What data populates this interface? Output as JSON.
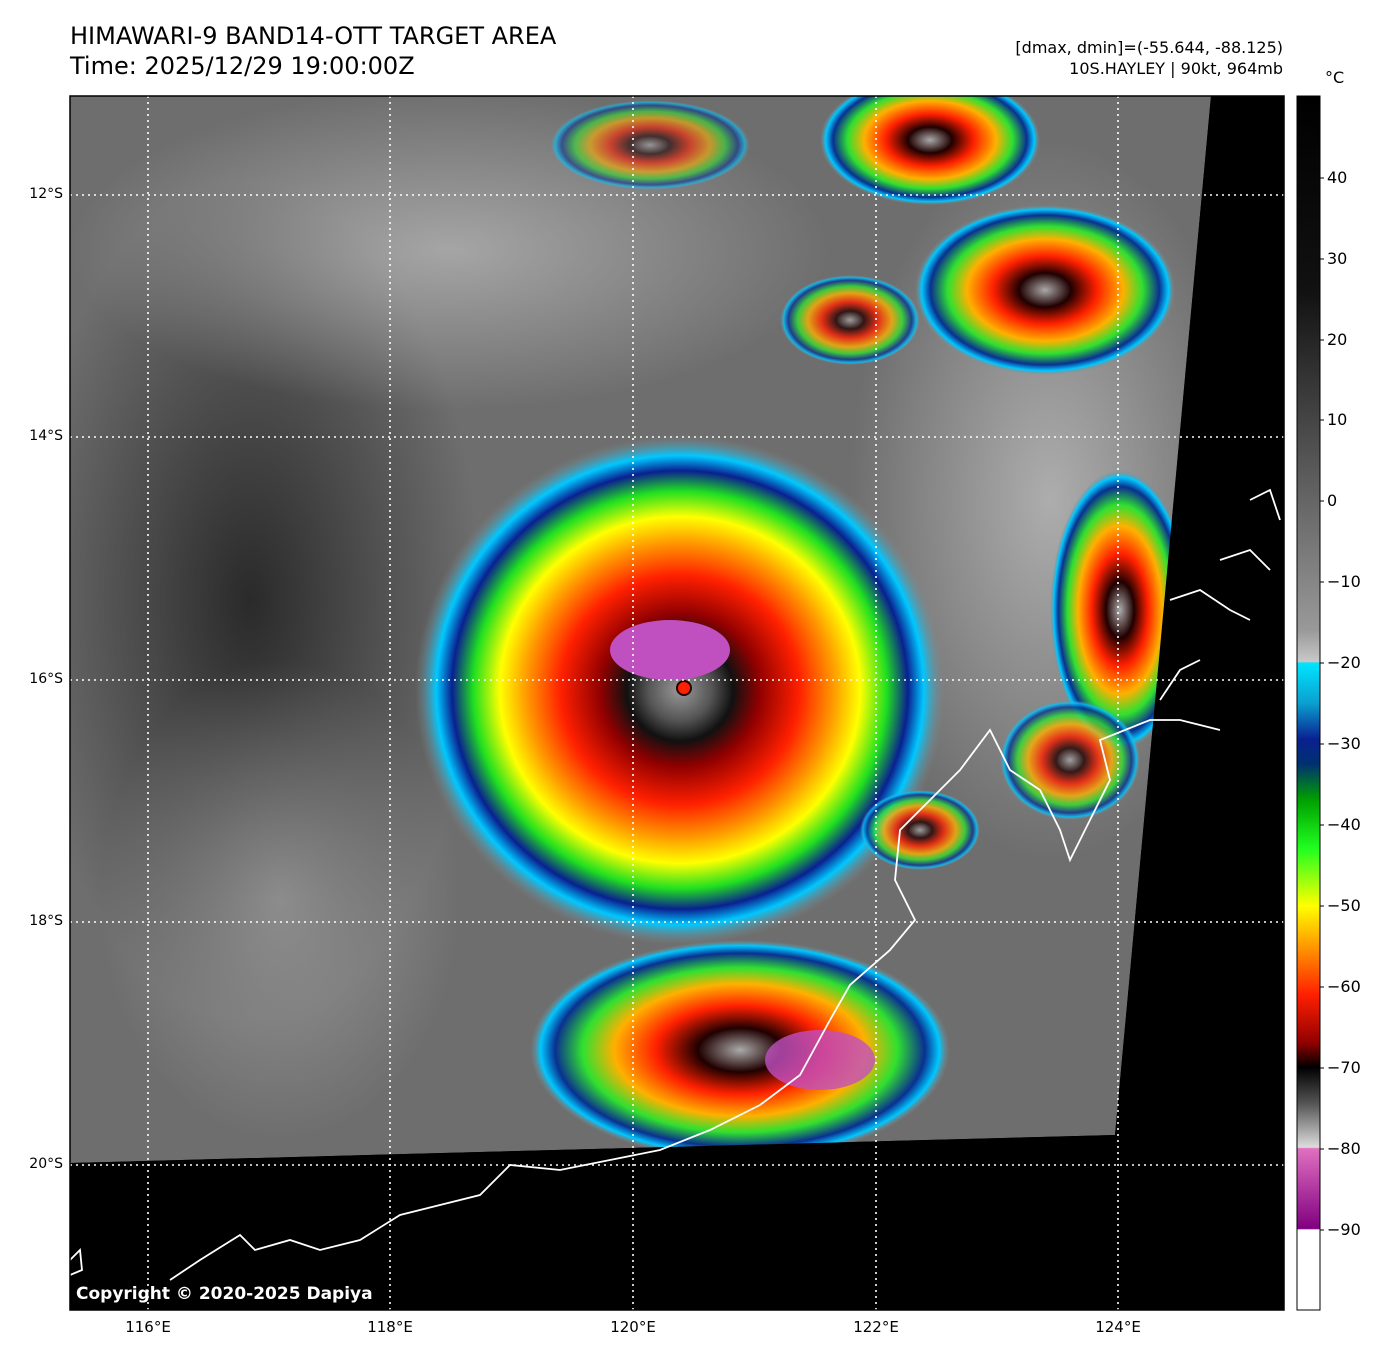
{
  "title": {
    "line1": "HIMAWARI-9 BAND14-OTT TARGET AREA",
    "line2": "Time: 2025/12/29 19:00:00Z"
  },
  "meta": {
    "range": "[dmax, dmin]=(-55.644, -88.125)",
    "storm": "10S.HAYLEY | 90kt, 964mb"
  },
  "colorbar": {
    "unit": "°C",
    "ticks": [
      "40",
      "30",
      "20",
      "10",
      "0",
      "−10",
      "−20",
      "−30",
      "−40",
      "−50",
      "−60",
      "−70",
      "−80",
      "−90"
    ],
    "range": [
      -100,
      50
    ]
  },
  "map": {
    "lat_labels": [
      "12°S",
      "14°S",
      "16°S",
      "18°S",
      "20°S"
    ],
    "lon_labels": [
      "116°E",
      "118°E",
      "120°E",
      "122°E",
      "124°E"
    ],
    "copyright": "Copyright © 2020-2025 Dapiya"
  },
  "storm_center": {
    "lon": 120.4,
    "lat": -16.05
  }
}
